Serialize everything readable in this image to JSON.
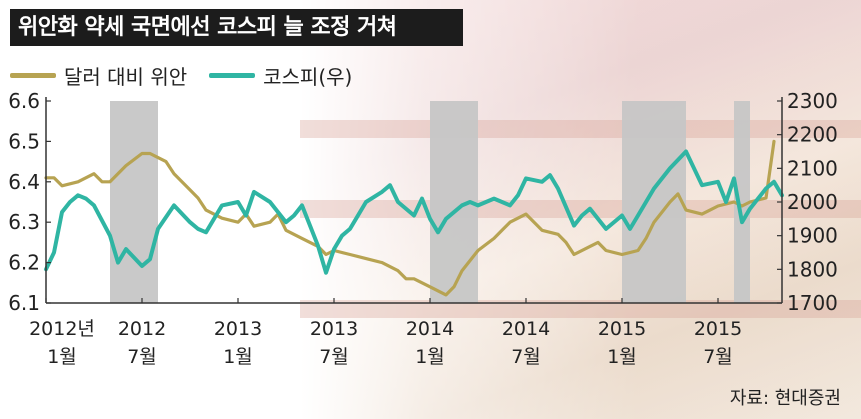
{
  "title": "위안화 약세 국면에선 코스피 늘 조정 거쳐",
  "source": "자료: 현대증권",
  "colors": {
    "yuan": "#b7a352",
    "kospi": "#2fb5a3",
    "shade": "#c6c6c6"
  },
  "chart_data": {
    "type": "line",
    "x_range": [
      "2012-01",
      "2015-11"
    ],
    "x_ticks": [
      {
        "x": "2012-01",
        "line1": "2012년",
        "line2": "1월"
      },
      {
        "x": "2012-07",
        "line1": "2012",
        "line2": "7월"
      },
      {
        "x": "2013-01",
        "line1": "2013",
        "line2": "1월"
      },
      {
        "x": "2013-07",
        "line1": "2013",
        "line2": "7월"
      },
      {
        "x": "2014-01",
        "line1": "2014",
        "line2": "1월"
      },
      {
        "x": "2014-07",
        "line1": "2014",
        "line2": "7월"
      },
      {
        "x": "2015-01",
        "line1": "2015",
        "line2": "1월"
      },
      {
        "x": "2015-07",
        "line1": "2015",
        "line2": "7월"
      }
    ],
    "y_left": {
      "range": [
        6.1,
        6.6
      ],
      "ticks": [
        "6.1",
        "6.2",
        "6.3",
        "6.4",
        "6.5",
        "6.6"
      ]
    },
    "y_right": {
      "range": [
        1700,
        2300
      ],
      "ticks": [
        "1700",
        "1800",
        "1900",
        "2000",
        "2100",
        "2200",
        "2300"
      ]
    },
    "shaded_periods": [
      {
        "start": "2012-05",
        "end": "2012-08"
      },
      {
        "start": "2014-01",
        "end": "2014-04"
      },
      {
        "start": "2015-01",
        "end": "2015-04"
      },
      {
        "start": "2015-04",
        "end": "2015-05"
      },
      {
        "start": "2015-08",
        "end": "2015-09"
      }
    ],
    "series": [
      {
        "name": "달러 대비 위안",
        "axis": "left",
        "points": [
          [
            "2012-01",
            6.41
          ],
          [
            "2012-01",
            6.41
          ],
          [
            "2012-02",
            6.39
          ],
          [
            "2012-03",
            6.4
          ],
          [
            "2012-04",
            6.42
          ],
          [
            "2012-04",
            6.4
          ],
          [
            "2012-05",
            6.4
          ],
          [
            "2012-06",
            6.44
          ],
          [
            "2012-07",
            6.47
          ],
          [
            "2012-07",
            6.47
          ],
          [
            "2012-08",
            6.46
          ],
          [
            "2012-08",
            6.45
          ],
          [
            "2012-09",
            6.42
          ],
          [
            "2012-10",
            6.38
          ],
          [
            "2012-10",
            6.36
          ],
          [
            "2012-11",
            6.33
          ],
          [
            "2012-12",
            6.31
          ],
          [
            "2013-01",
            6.3
          ],
          [
            "2013-01",
            6.32
          ],
          [
            "2013-02",
            6.29
          ],
          [
            "2013-03",
            6.3
          ],
          [
            "2013-03",
            6.32
          ],
          [
            "2013-04",
            6.28
          ],
          [
            "2013-05",
            6.26
          ],
          [
            "2013-06",
            6.24
          ],
          [
            "2013-06",
            6.22
          ],
          [
            "2013-07",
            6.23
          ],
          [
            "2013-08",
            6.22
          ],
          [
            "2013-09",
            6.21
          ],
          [
            "2013-10",
            6.2
          ],
          [
            "2013-11",
            6.18
          ],
          [
            "2013-11",
            6.16
          ],
          [
            "2013-12",
            6.16
          ],
          [
            "2014-01",
            6.14
          ],
          [
            "2014-02",
            6.12
          ],
          [
            "2014-02",
            6.14
          ],
          [
            "2014-03",
            6.18
          ],
          [
            "2014-04",
            6.23
          ],
          [
            "2014-05",
            6.26
          ],
          [
            "2014-05",
            6.28
          ],
          [
            "2014-06",
            6.3
          ],
          [
            "2014-07",
            6.32
          ],
          [
            "2014-08",
            6.28
          ],
          [
            "2014-09",
            6.27
          ],
          [
            "2014-09",
            6.25
          ],
          [
            "2014-10",
            6.22
          ],
          [
            "2014-11",
            6.24
          ],
          [
            "2014-11",
            6.25
          ],
          [
            "2014-12",
            6.23
          ],
          [
            "2015-01",
            6.22
          ],
          [
            "2015-02",
            6.23
          ],
          [
            "2015-02",
            6.26
          ],
          [
            "2015-03",
            6.3
          ],
          [
            "2015-04",
            6.35
          ],
          [
            "2015-04",
            6.37
          ],
          [
            "2015-05",
            6.33
          ],
          [
            "2015-06",
            6.32
          ],
          [
            "2015-06",
            6.33
          ],
          [
            "2015-07",
            6.34
          ],
          [
            "2015-08",
            6.35
          ],
          [
            "2015-08",
            6.34
          ],
          [
            "2015-09",
            6.35
          ],
          [
            "2015-10",
            6.36
          ],
          [
            "2015-10",
            6.5
          ]
        ]
      },
      {
        "name": "코스피(우)",
        "axis": "right",
        "points": [
          [
            "2012-01",
            1800
          ],
          [
            "2012-01",
            1850
          ],
          [
            "2012-02",
            1970
          ],
          [
            "2012-02",
            2000
          ],
          [
            "2012-03",
            2020
          ],
          [
            "2012-03",
            2010
          ],
          [
            "2012-04",
            1990
          ],
          [
            "2012-05",
            1900
          ],
          [
            "2012-05",
            1820
          ],
          [
            "2012-06",
            1860
          ],
          [
            "2012-07",
            1810
          ],
          [
            "2012-07",
            1830
          ],
          [
            "2012-08",
            1920
          ],
          [
            "2012-09",
            1990
          ],
          [
            "2012-10",
            1940
          ],
          [
            "2012-10",
            1920
          ],
          [
            "2012-11",
            1910
          ],
          [
            "2012-12",
            1990
          ],
          [
            "2013-01",
            2000
          ],
          [
            "2013-01",
            1960
          ],
          [
            "2013-02",
            2030
          ],
          [
            "2013-03",
            2000
          ],
          [
            "2013-04",
            1940
          ],
          [
            "2013-04",
            1960
          ],
          [
            "2013-05",
            1990
          ],
          [
            "2013-06",
            1870
          ],
          [
            "2013-06",
            1790
          ],
          [
            "2013-07",
            1860
          ],
          [
            "2013-07",
            1900
          ],
          [
            "2013-08",
            1920
          ],
          [
            "2013-09",
            2000
          ],
          [
            "2013-10",
            2030
          ],
          [
            "2013-10",
            2050
          ],
          [
            "2013-11",
            2000
          ],
          [
            "2013-12",
            1960
          ],
          [
            "2013-12",
            2010
          ],
          [
            "2014-01",
            1950
          ],
          [
            "2014-01",
            1910
          ],
          [
            "2014-02",
            1950
          ],
          [
            "2014-03",
            1990
          ],
          [
            "2014-03",
            2000
          ],
          [
            "2014-04",
            1990
          ],
          [
            "2014-05",
            2010
          ],
          [
            "2014-06",
            1990
          ],
          [
            "2014-06",
            2020
          ],
          [
            "2014-07",
            2070
          ],
          [
            "2014-08",
            2060
          ],
          [
            "2014-08",
            2080
          ],
          [
            "2014-09",
            2040
          ],
          [
            "2014-10",
            1930
          ],
          [
            "2014-10",
            1960
          ],
          [
            "2014-11",
            1980
          ],
          [
            "2014-12",
            1920
          ],
          [
            "2015-01",
            1960
          ],
          [
            "2015-01",
            1920
          ],
          [
            "2015-02",
            1960
          ],
          [
            "2015-03",
            2040
          ],
          [
            "2015-04",
            2100
          ],
          [
            "2015-05",
            2150
          ],
          [
            "2015-05",
            2100
          ],
          [
            "2015-06",
            2050
          ],
          [
            "2015-07",
            2060
          ],
          [
            "2015-07",
            2000
          ],
          [
            "2015-08",
            2070
          ],
          [
            "2015-08",
            1940
          ],
          [
            "2015-09",
            1980
          ],
          [
            "2015-10",
            2040
          ],
          [
            "2015-10",
            2060
          ],
          [
            "2015-11",
            2020
          ]
        ]
      }
    ]
  }
}
